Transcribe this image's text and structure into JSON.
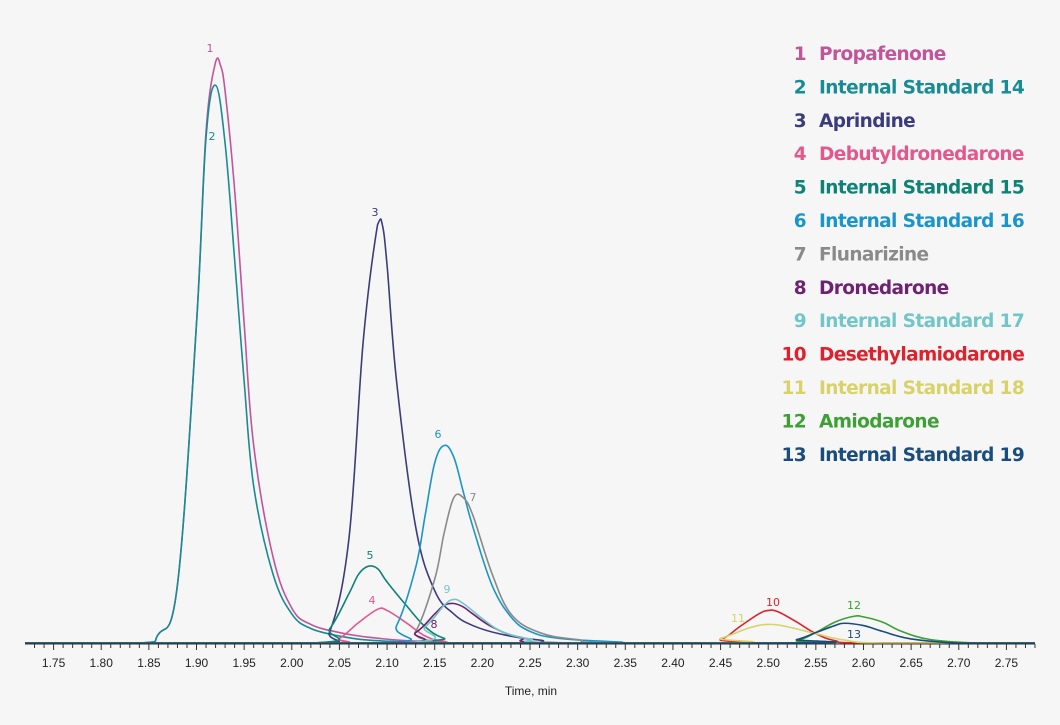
{
  "chart_data": {
    "type": "line",
    "title": "",
    "xlabel": "Time, min",
    "ylabel": "",
    "xlim": [
      1.72,
      2.78
    ],
    "ylim": [
      0,
      100
    ],
    "x_ticks": [
      "1.75",
      "1.80",
      "1.85",
      "1.90",
      "1.95",
      "2.00",
      "2.05",
      "2.10",
      "2.15",
      "2.20",
      "2.25",
      "2.30",
      "2.35",
      "2.40",
      "2.45",
      "2.50",
      "2.55",
      "2.60",
      "2.65",
      "2.70",
      "2.75"
    ],
    "grid": false,
    "legend_position": "top-right",
    "series": [
      {
        "id": "1",
        "name": "Propafenone",
        "color": "#c2559a",
        "peak_label": "1",
        "x": [
          1.72,
          1.84,
          1.86,
          1.88,
          1.9,
          1.91,
          1.92,
          1.925,
          1.93,
          1.94,
          1.95,
          1.96,
          1.98,
          2.0,
          2.02,
          2.05,
          2.08,
          2.12,
          2.16,
          2.22,
          2.78
        ],
        "y": [
          0,
          0,
          1.5,
          10,
          55,
          88,
          100,
          99.5,
          95,
          78,
          55,
          34,
          15,
          6,
          3.2,
          1.8,
          1.0,
          0.4,
          0.15,
          0,
          0
        ]
      },
      {
        "id": "2",
        "name": "Internal Standard 14",
        "color": "#188b94",
        "peak_label": "2",
        "x": [
          1.72,
          1.84,
          1.86,
          1.88,
          1.9,
          1.91,
          1.92,
          1.93,
          1.94,
          1.95,
          1.96,
          1.98,
          2.0,
          2.02,
          2.05,
          2.08,
          2.12,
          2.18,
          2.78
        ],
        "y": [
          0,
          0,
          1.5,
          10,
          55,
          87,
          96,
          86,
          66,
          45,
          27,
          12,
          5,
          2.5,
          1.2,
          0.5,
          0.2,
          0,
          0
        ]
      },
      {
        "id": "3",
        "name": "Aprindine",
        "color": "#3b3c7c",
        "peak_label": "3",
        "x": [
          1.72,
          2.02,
          2.04,
          2.06,
          2.075,
          2.09,
          2.095,
          2.1,
          2.11,
          2.13,
          2.15,
          2.17,
          2.19,
          2.22,
          2.26,
          2.32,
          2.78
        ],
        "y": [
          0,
          0,
          2,
          18,
          52,
          72,
          72,
          65,
          45,
          20,
          9,
          5,
          3,
          1.5,
          0.5,
          0,
          0
        ]
      },
      {
        "id": "4",
        "name": "Debutyldronedarone",
        "color": "#e4578d",
        "peak_label": "4",
        "x": [
          1.72,
          2.03,
          2.05,
          2.07,
          2.09,
          2.1,
          2.12,
          2.14,
          2.16,
          2.2,
          2.78
        ],
        "y": [
          0,
          0,
          0.8,
          3.5,
          5.8,
          5.6,
          3.5,
          1.2,
          0.3,
          0,
          0
        ]
      },
      {
        "id": "5",
        "name": "Internal Standard 15",
        "color": "#0f8276",
        "peak_label": "5",
        "x": [
          1.72,
          2.02,
          2.04,
          2.06,
          2.07,
          2.08,
          2.09,
          2.1,
          2.12,
          2.14,
          2.16,
          2.19,
          2.78
        ],
        "y": [
          0,
          0,
          2.5,
          8.5,
          11.8,
          13.2,
          12.8,
          10.5,
          6.5,
          2.8,
          0.8,
          0,
          0
        ]
      },
      {
        "id": "6",
        "name": "Internal Standard 16",
        "color": "#1a95c9",
        "peak_label": "6",
        "x": [
          1.72,
          2.09,
          2.11,
          2.13,
          2.14,
          2.15,
          2.16,
          2.17,
          2.18,
          2.19,
          2.21,
          2.23,
          2.25,
          2.28,
          2.34,
          2.4,
          2.78
        ],
        "y": [
          0,
          0,
          3,
          13,
          22,
          31,
          34,
          32,
          26,
          20,
          10,
          4.5,
          2,
          0.8,
          0.2,
          0,
          0
        ]
      },
      {
        "id": "7",
        "name": "Flunarizine",
        "color": "#8a8a8a",
        "peak_label": "7",
        "x": [
          1.72,
          2.11,
          2.13,
          2.15,
          2.16,
          2.17,
          2.18,
          2.19,
          2.21,
          2.23,
          2.26,
          2.3,
          2.36,
          2.78
        ],
        "y": [
          0,
          0,
          2,
          11,
          19,
          25,
          25,
          22,
          12,
          5,
          1.8,
          0.6,
          0,
          0
        ]
      },
      {
        "id": "8",
        "name": "Dronedarone",
        "color": "#6e2370",
        "peak_label": "8",
        "x": [
          1.72,
          2.1,
          2.13,
          2.15,
          2.16,
          2.17,
          2.18,
          2.19,
          2.21,
          2.24,
          2.3,
          2.78
        ],
        "y": [
          0,
          0,
          1.8,
          5,
          6.5,
          6.8,
          6.2,
          5,
          2.8,
          1,
          0,
          0
        ]
      },
      {
        "id": "9",
        "name": "Internal Standard 17",
        "color": "#73c6c8",
        "peak_label": "9",
        "x": [
          1.72,
          2.11,
          2.14,
          2.16,
          2.17,
          2.18,
          2.2,
          2.22,
          2.25,
          2.3,
          2.78
        ],
        "y": [
          0,
          0,
          2.8,
          6.5,
          7.5,
          6.8,
          4.2,
          2,
          0.7,
          0,
          0
        ]
      },
      {
        "id": "10",
        "name": "Desethylamiodarone",
        "color": "#e0202a",
        "peak_label": "10",
        "x": [
          1.72,
          2.42,
          2.45,
          2.47,
          2.49,
          2.5,
          2.51,
          2.53,
          2.55,
          2.57,
          2.6,
          2.78
        ],
        "y": [
          0,
          0,
          0.6,
          2.8,
          5,
          5.6,
          5.4,
          3.6,
          1.6,
          0.4,
          0,
          0
        ]
      },
      {
        "id": "11",
        "name": "Internal Standard 18",
        "color": "#d8d269",
        "peak_label": "11",
        "x": [
          1.72,
          2.42,
          2.45,
          2.48,
          2.5,
          2.52,
          2.55,
          2.58,
          2.62,
          2.78
        ],
        "y": [
          0,
          0,
          0.8,
          2.6,
          3.2,
          2.8,
          1.6,
          0.5,
          0,
          0
        ]
      },
      {
        "id": "12",
        "name": "Amiodarone",
        "color": "#3da035",
        "peak_label": "12",
        "x": [
          1.72,
          2.5,
          2.53,
          2.55,
          2.57,
          2.59,
          2.6,
          2.62,
          2.64,
          2.67,
          2.72,
          2.78
        ],
        "y": [
          0,
          0,
          0.4,
          1.8,
          3.6,
          4.6,
          4.5,
          3.6,
          2,
          0.6,
          0,
          0
        ]
      },
      {
        "id": "13",
        "name": "Internal Standard 19",
        "color": "#1a4c7c",
        "peak_label": "13",
        "x": [
          1.72,
          2.5,
          2.53,
          2.55,
          2.57,
          2.58,
          2.6,
          2.62,
          2.65,
          2.7,
          2.78
        ],
        "y": [
          0,
          0,
          0.6,
          1.8,
          3,
          3.4,
          3,
          2,
          0.7,
          0,
          0
        ]
      }
    ]
  }
}
